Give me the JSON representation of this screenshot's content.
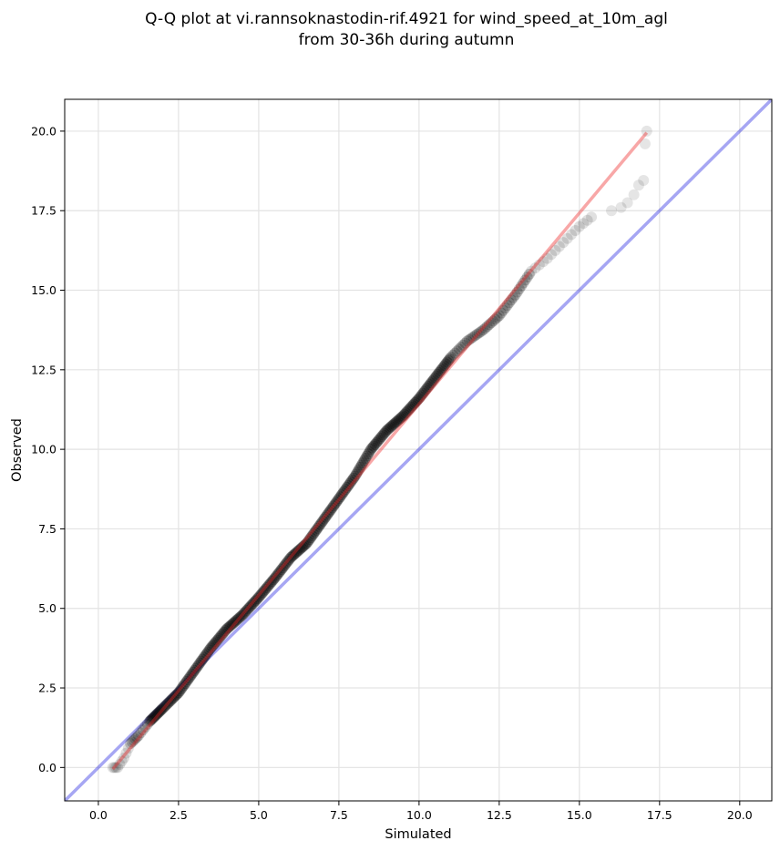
{
  "chart_data": {
    "type": "scatter",
    "title": "Q-Q plot at vi.rannsoknastodin-rif.4921 for wind_speed_at_10m_agl",
    "subtitle": "from 30-36h during autumn",
    "xlabel": "Simulated",
    "ylabel": "Observed",
    "xlim": [
      -1.05,
      21.0
    ],
    "ylim": [
      -1.05,
      21.0
    ],
    "x_ticks": [
      "0.0",
      "2.5",
      "5.0",
      "7.5",
      "10.0",
      "12.5",
      "15.0",
      "17.5",
      "20.0"
    ],
    "y_ticks": [
      "0.0",
      "2.5",
      "5.0",
      "7.5",
      "10.0",
      "12.5",
      "15.0",
      "17.5",
      "20.0"
    ],
    "grid": true,
    "colors": {
      "points": "#000000",
      "identity_line": "#0000dd",
      "fit_line": "#ee2222"
    },
    "quantile_curve": [
      [
        0.45,
        0.0
      ],
      [
        0.6,
        0.0
      ],
      [
        0.8,
        0.3
      ],
      [
        1.0,
        0.75
      ],
      [
        1.25,
        1.0
      ],
      [
        1.6,
        1.45
      ],
      [
        2.0,
        1.85
      ],
      [
        2.5,
        2.35
      ],
      [
        3.0,
        3.05
      ],
      [
        3.5,
        3.75
      ],
      [
        4.0,
        4.35
      ],
      [
        4.5,
        4.8
      ],
      [
        5.0,
        5.35
      ],
      [
        5.5,
        5.95
      ],
      [
        6.0,
        6.6
      ],
      [
        6.5,
        7.05
      ],
      [
        7.0,
        7.75
      ],
      [
        7.5,
        8.45
      ],
      [
        8.0,
        9.15
      ],
      [
        8.5,
        10.0
      ],
      [
        9.0,
        10.6
      ],
      [
        9.5,
        11.05
      ],
      [
        10.0,
        11.6
      ],
      [
        10.5,
        12.25
      ],
      [
        11.0,
        12.9
      ],
      [
        11.5,
        13.4
      ],
      [
        12.0,
        13.75
      ],
      [
        12.5,
        14.2
      ],
      [
        13.0,
        14.85
      ],
      [
        13.5,
        15.6
      ],
      [
        14.0,
        16.0
      ],
      [
        14.5,
        16.5
      ],
      [
        15.0,
        17.0
      ],
      [
        15.5,
        17.4
      ]
    ],
    "tail_points": [
      [
        16.0,
        17.5
      ],
      [
        16.3,
        17.6
      ],
      [
        16.5,
        17.75
      ],
      [
        16.7,
        18.0
      ],
      [
        16.85,
        18.3
      ],
      [
        17.0,
        18.45
      ],
      [
        17.05,
        19.6
      ],
      [
        17.1,
        20.0
      ]
    ],
    "identity_line": [
      [
        -1.05,
        -1.05
      ],
      [
        21.0,
        21.0
      ]
    ],
    "fit_line": [
      [
        0.45,
        -0.05
      ],
      [
        17.1,
        19.95
      ]
    ]
  }
}
